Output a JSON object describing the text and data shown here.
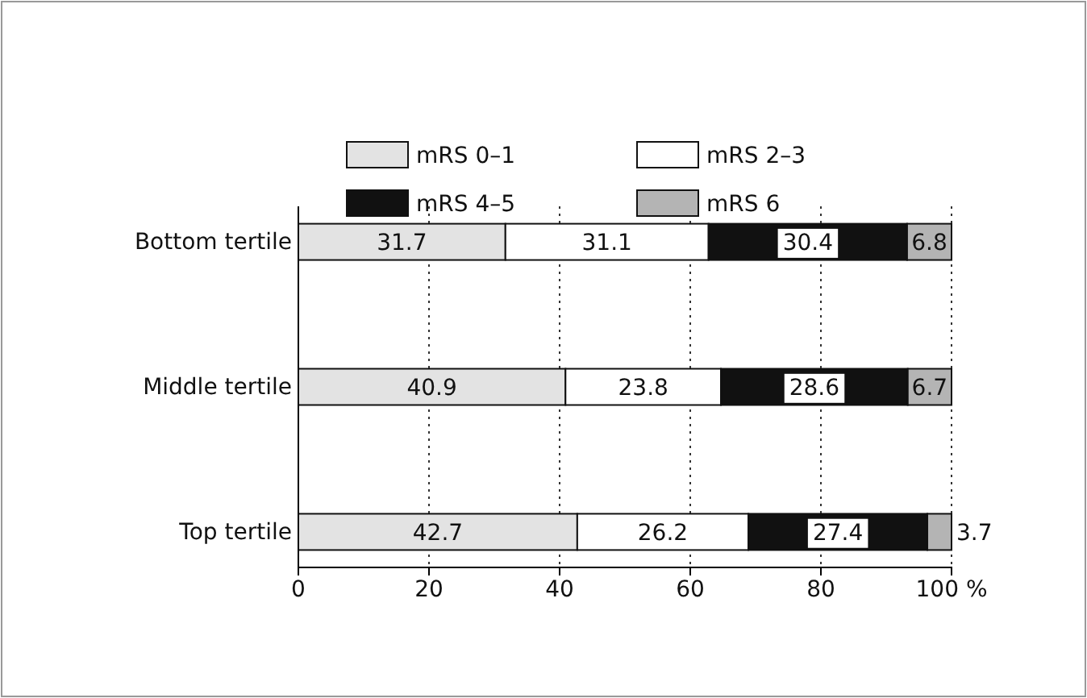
{
  "chart_data": {
    "type": "bar",
    "orientation": "horizontal",
    "stacked": true,
    "categories": [
      "Bottom tertile",
      "Middle tertile",
      "Top tertile"
    ],
    "series": [
      {
        "name": "mRS 0–1",
        "color": "#e3e3e3",
        "values": [
          31.7,
          40.9,
          42.7
        ]
      },
      {
        "name": "mRS 2–3",
        "color": "#ffffff",
        "values": [
          31.1,
          23.8,
          26.2
        ]
      },
      {
        "name": "mRS 4–5",
        "color": "#111111",
        "values": [
          30.4,
          28.6,
          27.4
        ]
      },
      {
        "name": "mRS 6",
        "color": "#b4b4b4",
        "values": [
          6.8,
          6.7,
          3.7
        ]
      }
    ],
    "xlim": [
      0,
      100
    ],
    "xticks": [
      0,
      20,
      40,
      60,
      80,
      {
        "value": 100,
        "label": "100 %"
      }
    ],
    "grid": "x",
    "legend": "top",
    "data_labels": true
  }
}
